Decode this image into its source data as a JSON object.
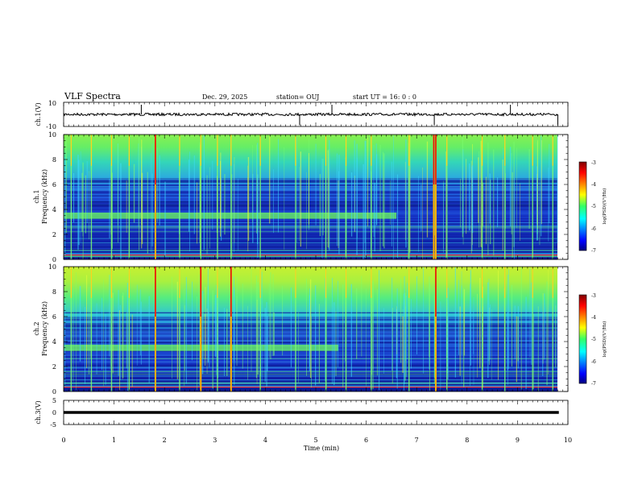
{
  "chart_data": {
    "type": "heatmap",
    "header": {
      "title": "VLF Spectra",
      "date": "Dec. 29, 2025",
      "station": "station= OUJ",
      "start": "start  UT =   16: 0  : 0"
    },
    "time_axis": {
      "label": "Time  (min)",
      "range": [
        0,
        10
      ],
      "ticks": [
        "0",
        "1",
        "2",
        "3",
        "4",
        "5",
        "6",
        "7",
        "8",
        "9",
        "10"
      ]
    },
    "waveform_ch1": {
      "ylabel": "ch.1(V)",
      "ylim": [
        -10,
        10
      ],
      "ticks": [
        "10",
        "-10"
      ],
      "baseline_v": 0,
      "data_end_min": 9.82,
      "spikes_min": [
        1.54,
        4.68,
        5.32,
        7.35,
        8.86,
        9.8
      ]
    },
    "spectrogram_ch1": {
      "ylabel_top": "ch.1",
      "ylabel": "Frequency  (kHz)",
      "ylim": [
        0,
        10
      ],
      "ticks": [
        "0",
        "2",
        "4",
        "6",
        "8",
        "10"
      ],
      "colorbar": {
        "label": "log(PSD)(V²/Hz)",
        "range": [
          -7,
          -3
        ],
        "ticks": [
          "-3",
          "-4",
          "-5",
          "-6",
          "-7"
        ]
      },
      "band_khz": 3.5,
      "band_end_min": 6.6,
      "strong_impulses_min": [
        1.82,
        7.38,
        7.34
      ],
      "impulses_min": [
        0.15,
        0.55,
        0.95,
        1.3,
        2.3,
        2.72,
        3.05,
        3.32,
        3.9,
        4.6,
        5.2,
        5.6,
        6.1,
        6.85,
        7.6,
        8.3,
        8.75,
        9.3,
        9.7
      ]
    },
    "spectrogram_ch2": {
      "ylabel_top": "ch.2",
      "ylabel": "Frequency  (kHz)",
      "ylim": [
        0,
        10
      ],
      "ticks": [
        "0",
        "2",
        "4",
        "6",
        "8",
        "10"
      ],
      "colorbar": {
        "label": "log(PSD)(V²/Hz)",
        "range": [
          -7,
          -3
        ],
        "ticks": [
          "-3",
          "-4",
          "-5",
          "-6",
          "-7"
        ]
      },
      "band_khz": 3.5,
      "band_end_min": 5.45,
      "strong_impulses_min": [
        1.82,
        2.72,
        3.32,
        7.38
      ],
      "impulses_min": [
        0.15,
        0.55,
        0.95,
        1.3,
        2.3,
        3.05,
        3.9,
        4.6,
        5.2,
        5.6,
        6.1,
        6.85,
        7.6,
        8.3,
        8.75,
        9.3,
        9.7
      ]
    },
    "waveform_ch3": {
      "ylabel": "ch.3(V)",
      "ylim": [
        -5,
        5
      ],
      "ticks": [
        "5",
        "0",
        "-5"
      ],
      "constant_v": 0,
      "data_end_min": 9.82
    }
  }
}
